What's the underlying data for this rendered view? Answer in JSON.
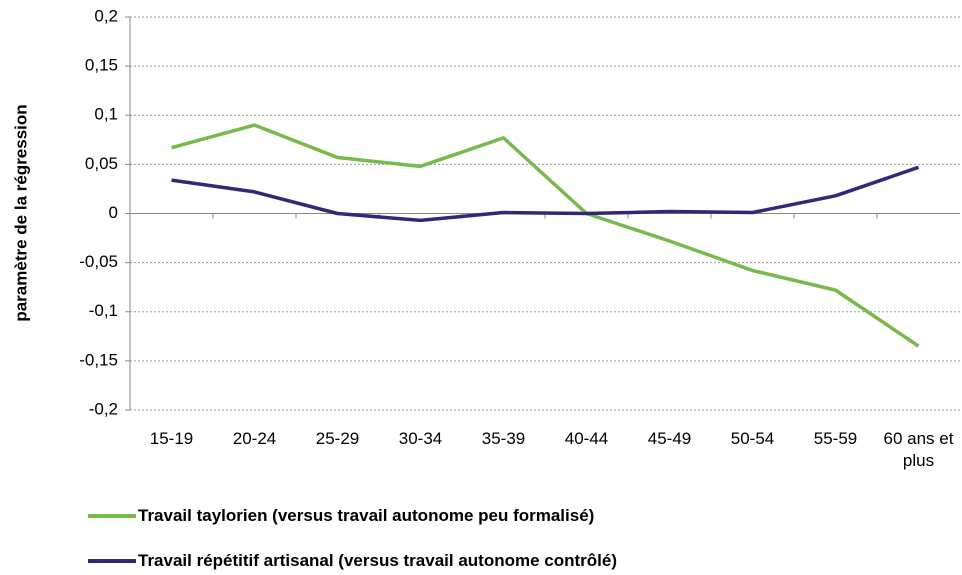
{
  "chart_data": {
    "type": "line",
    "y_label": "paramètre de la régression",
    "categories": [
      "15-19",
      "20-24",
      "25-29",
      "30-34",
      "35-39",
      "40-44",
      "45-49",
      "50-54",
      "55-59",
      "60 ans et plus"
    ],
    "series": [
      {
        "name": "Travail taylorien (versus travail autonome peu formalisé)",
        "color": "#77b94a",
        "values": [
          0.067,
          0.09,
          0.057,
          0.048,
          0.077,
          0,
          -0.028,
          -0.058,
          -0.078,
          -0.135
        ]
      },
      {
        "name": "Travail répétitif artisanal (versus travail autonome contrôlé)",
        "color": "#2e2a78",
        "values": [
          0.034,
          0.022,
          0,
          -0.007,
          0.001,
          0,
          0.002,
          0.001,
          0.018,
          0.047
        ]
      }
    ],
    "ylim": [
      -0.2,
      0.2
    ],
    "yticks": [
      {
        "value": -0.2,
        "label": "-0,2"
      },
      {
        "value": -0.15,
        "label": "-0,15"
      },
      {
        "value": -0.1,
        "label": "-0,1"
      },
      {
        "value": -0.05,
        "label": "-0,05"
      },
      0,
      {
        "value": 0.05,
        "label": "0,05"
      },
      {
        "value": 0.1,
        "label": "0,1"
      },
      {
        "value": 0.15,
        "label": "0,15"
      },
      {
        "value": 0.2,
        "label": "0,2"
      }
    ],
    "grid": true
  }
}
